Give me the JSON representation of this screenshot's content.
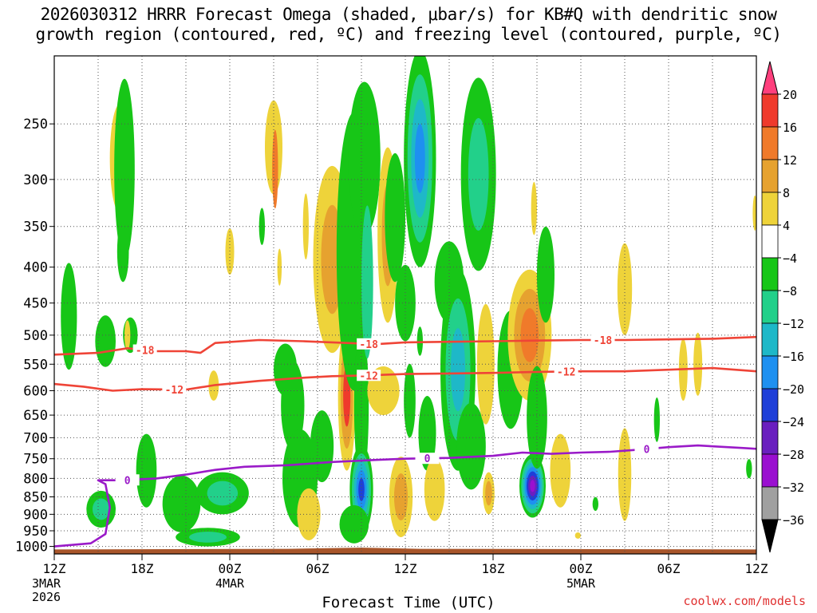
{
  "title_line1": "2026030312 HRRR Forecast Omega (shaded, μbar/s) for KB#Q with dendritic snow",
  "title_line2": "growth region (contoured, red, ºC) and freezing level (contoured, purple, ºC)",
  "xlabel": "Forecast Time (UTC)",
  "credit": "coolwx.com/models",
  "chart_data": {
    "type": "heatmap",
    "x_hours": [
      0,
      48
    ],
    "x_ticks": [
      {
        "h": 0,
        "label": "12Z",
        "sub": [
          "3MAR",
          "2026"
        ]
      },
      {
        "h": 6,
        "label": "18Z",
        "sub": []
      },
      {
        "h": 12,
        "label": "00Z",
        "sub": [
          "4MAR"
        ]
      },
      {
        "h": 18,
        "label": "06Z",
        "sub": []
      },
      {
        "h": 24,
        "label": "12Z",
        "sub": []
      },
      {
        "h": 30,
        "label": "18Z",
        "sub": []
      },
      {
        "h": 36,
        "label": "00Z",
        "sub": [
          "5MAR"
        ]
      },
      {
        "h": 42,
        "label": "06Z",
        "sub": []
      },
      {
        "h": 48,
        "label": "12Z",
        "sub": []
      }
    ],
    "y_label_ticks": [
      250,
      300,
      350,
      400,
      450,
      500,
      550,
      600,
      650,
      700,
      750,
      800,
      850,
      900,
      950,
      1000
    ],
    "y_range_hpa": [
      200,
      1025
    ],
    "colorbar": {
      "labels": [
        "20",
        "16",
        "12",
        "8",
        "4",
        "−4",
        "−8",
        "−12",
        "−16",
        "−20",
        "−24",
        "−28",
        "−32",
        "−36"
      ],
      "colors": [
        "#ff3f7d",
        "#ef3a2c",
        "#f07a2a",
        "#e6a22f",
        "#eed33a",
        "#ffffff",
        "#17c617",
        "#22d08a",
        "#1eb8c8",
        "#1e90f0",
        "#1f3fd8",
        "#6a1fbf",
        "#9a0fd0",
        "#a0a0a0",
        "#000000"
      ]
    },
    "contours": [
      {
        "name": "dgz-top",
        "color": "#ef4437",
        "label": "-18",
        "label_at_hours": [
          6.2,
          21.5,
          37.5
        ],
        "points": [
          [
            0,
            533
          ],
          [
            3,
            530
          ],
          [
            5,
            522
          ],
          [
            7,
            527
          ],
          [
            9,
            527
          ],
          [
            10,
            530
          ],
          [
            11,
            513
          ],
          [
            14,
            508
          ],
          [
            17,
            510
          ],
          [
            20,
            513
          ],
          [
            22,
            515
          ],
          [
            24,
            512
          ],
          [
            27,
            511
          ],
          [
            30,
            510
          ],
          [
            33,
            509
          ],
          [
            36,
            508
          ],
          [
            39,
            508
          ],
          [
            42,
            507
          ],
          [
            45,
            506
          ],
          [
            48,
            503
          ]
        ]
      },
      {
        "name": "dgz-bottom",
        "color": "#ef4437",
        "label": "-12",
        "label_at_hours": [
          8.2,
          21.5,
          35
        ],
        "points": [
          [
            0,
            587
          ],
          [
            2,
            592
          ],
          [
            4,
            600
          ],
          [
            6,
            597
          ],
          [
            9,
            598
          ],
          [
            11,
            589
          ],
          [
            14,
            581
          ],
          [
            17,
            575
          ],
          [
            19,
            572
          ],
          [
            21,
            571
          ],
          [
            24,
            568
          ],
          [
            27,
            567
          ],
          [
            30,
            566
          ],
          [
            33,
            564
          ],
          [
            36,
            563
          ],
          [
            39,
            563
          ],
          [
            42,
            560
          ],
          [
            45,
            557
          ],
          [
            48,
            563
          ]
        ]
      },
      {
        "name": "freezing-level",
        "color": "#9a1ac8",
        "label": "0",
        "label_at_hours": [
          5,
          25.5,
          40.5
        ],
        "points": [
          [
            0,
            1000
          ],
          [
            2.5,
            990
          ],
          [
            3.5,
            960
          ],
          [
            3.8,
            880
          ],
          [
            3.5,
            815
          ],
          [
            3,
            805
          ],
          [
            4.5,
            805
          ],
          [
            7,
            800
          ],
          [
            9,
            790
          ],
          [
            11,
            778
          ],
          [
            13,
            770
          ],
          [
            16,
            766
          ],
          [
            19,
            758
          ],
          [
            22,
            753
          ],
          [
            24,
            750
          ],
          [
            27,
            748
          ],
          [
            30,
            743
          ],
          [
            32,
            735
          ],
          [
            34,
            738
          ],
          [
            36,
            735
          ],
          [
            38,
            733
          ],
          [
            40,
            728
          ],
          [
            42,
            722
          ],
          [
            44,
            718
          ],
          [
            47,
            724
          ],
          [
            48,
            726
          ]
        ]
      }
    ],
    "blobs": [
      {
        "h": 1,
        "p": 470,
        "rh": 0.55,
        "rp": 90,
        "levels": [
          "#17c617"
        ]
      },
      {
        "h": 3.2,
        "p": 885,
        "rh": 1.0,
        "rp": 55,
        "levels": [
          "#17c617",
          "#22d08a"
        ]
      },
      {
        "h": 3.5,
        "p": 510,
        "rh": 0.7,
        "rp": 45,
        "levels": [
          "#17c617"
        ]
      },
      {
        "h": 4.5,
        "p": 280,
        "rh": 0.7,
        "rp": 55,
        "levels": [
          "#eed33a"
        ]
      },
      {
        "h": 4.7,
        "p": 380,
        "rh": 0.4,
        "rp": 40,
        "levels": [
          "#17c617"
        ]
      },
      {
        "h": 5.2,
        "p": 500,
        "rh": 0.5,
        "rp": 30,
        "levels": [
          "#17c617"
        ]
      },
      {
        "h": 4.8,
        "p": 290,
        "rh": 0.7,
        "rp": 100,
        "levels": [
          "#17c617"
        ]
      },
      {
        "h": 6.3,
        "p": 780,
        "rh": 0.7,
        "rp": 100,
        "levels": [
          "#17c617"
        ]
      },
      {
        "h": 5.0,
        "p": 500,
        "rh": 0.2,
        "rp": 25,
        "levels": [
          "#eed33a"
        ]
      },
      {
        "h": 8.7,
        "p": 870,
        "rh": 1.3,
        "rp": 85,
        "levels": [
          "#17c617"
        ]
      },
      {
        "h": 10.5,
        "p": 970,
        "rh": 2.2,
        "rp": 30,
        "levels": [
          "#17c617",
          "#22d08a"
        ]
      },
      {
        "h": 11.5,
        "p": 840,
        "rh": 1.8,
        "rp": 60,
        "levels": [
          "#17c617",
          "#22d08a"
        ]
      },
      {
        "h": 10.9,
        "p": 590,
        "rh": 0.35,
        "rp": 30,
        "levels": [
          "#eed33a"
        ]
      },
      {
        "h": 12.0,
        "p": 380,
        "rh": 0.3,
        "rp": 30,
        "levels": [
          "#eed33a"
        ]
      },
      {
        "h": 14.2,
        "p": 350,
        "rh": 0.2,
        "rp": 22,
        "levels": [
          "#17c617"
        ]
      },
      {
        "h": 15.0,
        "p": 270,
        "rh": 0.6,
        "rp": 45,
        "levels": [
          "#eed33a"
        ]
      },
      {
        "h": 15.1,
        "p": 290,
        "rh": 0.2,
        "rp": 40,
        "levels": [
          "#f07a2a"
        ]
      },
      {
        "h": 15.4,
        "p": 400,
        "rh": 0.15,
        "rp": 25,
        "levels": [
          "#eed33a"
        ]
      },
      {
        "h": 15.8,
        "p": 560,
        "rh": 0.8,
        "rp": 50,
        "levels": [
          "#17c617"
        ]
      },
      {
        "h": 16.3,
        "p": 630,
        "rh": 0.8,
        "rp": 100,
        "levels": [
          "#17c617"
        ]
      },
      {
        "h": 16.8,
        "p": 800,
        "rh": 1.2,
        "rp": 140,
        "levels": [
          "#17c617"
        ]
      },
      {
        "h": 17.4,
        "p": 900,
        "rh": 0.8,
        "rp": 80,
        "levels": [
          "#eed33a"
        ]
      },
      {
        "h": 17.2,
        "p": 350,
        "rh": 0.2,
        "rp": 40,
        "levels": [
          "#eed33a"
        ]
      },
      {
        "h": 18.3,
        "p": 720,
        "rh": 0.8,
        "rp": 90,
        "levels": [
          "#17c617"
        ]
      },
      {
        "h": 19.0,
        "p": 390,
        "rh": 1.3,
        "rp": 140,
        "levels": [
          "#eed33a",
          "#e6a22f"
        ]
      },
      {
        "h": 20.0,
        "p": 610,
        "rh": 0.6,
        "rp": 170,
        "levels": [
          "#eed33a",
          "#e6a22f",
          "#ef3a2c"
        ]
      },
      {
        "h": 20.5,
        "p": 380,
        "rh": 1.2,
        "rp": 220,
        "levels": [
          "#17c617"
        ]
      },
      {
        "h": 21.2,
        "p": 280,
        "rh": 1.1,
        "rp": 80,
        "levels": [
          "#17c617"
        ]
      },
      {
        "h": 21.0,
        "p": 630,
        "rh": 0.5,
        "rp": 180,
        "levels": [
          "#17c617"
        ]
      },
      {
        "h": 21.0,
        "p": 830,
        "rh": 0.8,
        "rp": 130,
        "levels": [
          "#17c617",
          "#22d08a",
          "#1eb8c8",
          "#1e90f0",
          "#1f3fd8"
        ]
      },
      {
        "h": 21.4,
        "p": 420,
        "rh": 0.4,
        "rp": 120,
        "levels": [
          "#22d08a"
        ]
      },
      {
        "h": 20.5,
        "p": 930,
        "rh": 1.0,
        "rp": 60,
        "levels": [
          "#17c617"
        ]
      },
      {
        "h": 22.8,
        "p": 360,
        "rh": 0.7,
        "rp": 120,
        "levels": [
          "#eed33a",
          "#e6a22f"
        ]
      },
      {
        "h": 22.5,
        "p": 600,
        "rh": 1.1,
        "rp": 50,
        "levels": [
          "#eed33a"
        ]
      },
      {
        "h": 23.3,
        "p": 340,
        "rh": 0.7,
        "rp": 80,
        "levels": [
          "#17c617"
        ]
      },
      {
        "h": 23.7,
        "p": 850,
        "rh": 0.8,
        "rp": 120,
        "levels": [
          "#eed33a",
          "#e6a22f"
        ]
      },
      {
        "h": 24.0,
        "p": 450,
        "rh": 0.7,
        "rp": 60,
        "levels": [
          "#17c617"
        ]
      },
      {
        "h": 24.3,
        "p": 620,
        "rh": 0.4,
        "rp": 80,
        "levels": [
          "#17c617"
        ]
      },
      {
        "h": 25.0,
        "p": 510,
        "rh": 0.2,
        "rp": 25,
        "levels": [
          "#17c617"
        ]
      },
      {
        "h": 25.0,
        "p": 280,
        "rh": 1.1,
        "rp": 120,
        "levels": [
          "#17c617",
          "#22d08a",
          "#1eb8c8",
          "#1e90f0"
        ]
      },
      {
        "h": 25.5,
        "p": 690,
        "rh": 0.6,
        "rp": 90,
        "levels": [
          "#17c617"
        ]
      },
      {
        "h": 26.0,
        "p": 830,
        "rh": 0.7,
        "rp": 90,
        "levels": [
          "#eed33a"
        ]
      },
      {
        "h": 27.0,
        "p": 420,
        "rh": 1.0,
        "rp": 60,
        "levels": [
          "#17c617"
        ]
      },
      {
        "h": 27.6,
        "p": 560,
        "rh": 1.2,
        "rp": 220,
        "levels": [
          "#17c617",
          "#22d08a",
          "#1eb8c8"
        ]
      },
      {
        "h": 28.5,
        "p": 720,
        "rh": 1.0,
        "rp": 110,
        "levels": [
          "#17c617"
        ]
      },
      {
        "h": 29.5,
        "p": 550,
        "rh": 0.6,
        "rp": 120,
        "levels": [
          "#eed33a"
        ]
      },
      {
        "h": 29.7,
        "p": 840,
        "rh": 0.4,
        "rp": 60,
        "levels": [
          "#eed33a",
          "#e6a22f"
        ]
      },
      {
        "h": 29.0,
        "p": 295,
        "rh": 1.2,
        "rp": 110,
        "levels": [
          "#17c617",
          "#22d08a"
        ]
      },
      {
        "h": 31.2,
        "p": 560,
        "rh": 0.9,
        "rp": 120,
        "levels": [
          "#17c617"
        ]
      },
      {
        "h": 32.5,
        "p": 500,
        "rh": 1.5,
        "rp": 120,
        "levels": [
          "#eed33a",
          "#e6a22f",
          "#f07a2a"
        ]
      },
      {
        "h": 32.7,
        "p": 820,
        "rh": 0.9,
        "rp": 90,
        "levels": [
          "#17c617",
          "#22d08a",
          "#1eb8c8",
          "#1e90f0",
          "#1f3fd8",
          "#6a1fbf",
          "#9a0fd0"
        ]
      },
      {
        "h": 33.0,
        "p": 655,
        "rh": 0.7,
        "rp": 120,
        "levels": [
          "#17c617"
        ]
      },
      {
        "h": 33.6,
        "p": 410,
        "rh": 0.6,
        "rp": 70,
        "levels": [
          "#17c617"
        ]
      },
      {
        "h": 32.8,
        "p": 330,
        "rh": 0.2,
        "rp": 30,
        "levels": [
          "#eed33a"
        ]
      },
      {
        "h": 34.6,
        "p": 780,
        "rh": 0.7,
        "rp": 100,
        "levels": [
          "#eed33a"
        ]
      },
      {
        "h": 35.8,
        "p": 965,
        "rh": 0.2,
        "rp": 10,
        "levels": [
          "#eed33a"
        ]
      },
      {
        "h": 39.0,
        "p": 430,
        "rh": 0.5,
        "rp": 70,
        "levels": [
          "#eed33a"
        ]
      },
      {
        "h": 39.0,
        "p": 790,
        "rh": 0.45,
        "rp": 130,
        "levels": [
          "#eed33a"
        ]
      },
      {
        "h": 41.2,
        "p": 660,
        "rh": 0.2,
        "rp": 50,
        "levels": [
          "#17c617"
        ]
      },
      {
        "h": 43.0,
        "p": 560,
        "rh": 0.3,
        "rp": 60,
        "levels": [
          "#eed33a"
        ]
      },
      {
        "h": 44.0,
        "p": 550,
        "rh": 0.3,
        "rp": 60,
        "levels": [
          "#eed33a"
        ]
      },
      {
        "h": 47.5,
        "p": 775,
        "rh": 0.2,
        "rp": 25,
        "levels": [
          "#17c617"
        ]
      },
      {
        "h": 47.9,
        "p": 335,
        "rh": 0.15,
        "rp": 20,
        "levels": [
          "#eed33a"
        ]
      },
      {
        "h": 37.0,
        "p": 870,
        "rh": 0.2,
        "rp": 20,
        "levels": [
          "#17c617"
        ]
      }
    ]
  }
}
